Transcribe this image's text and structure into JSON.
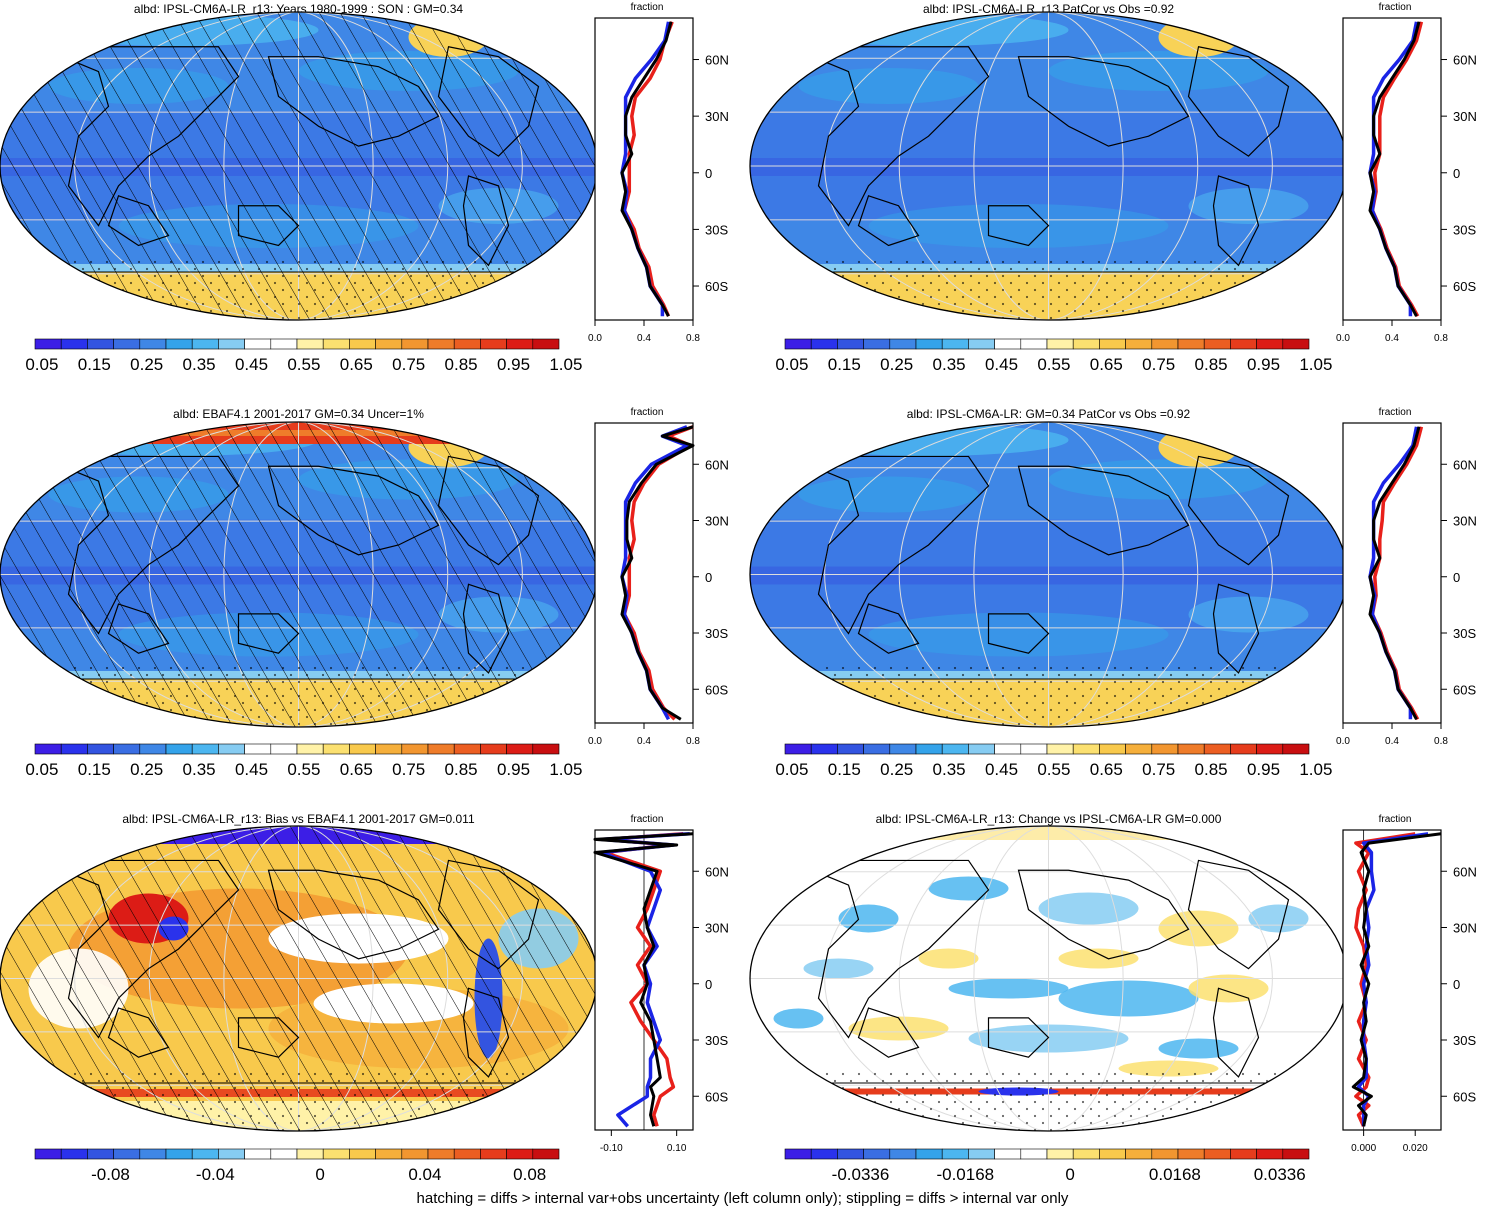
{
  "colors": {
    "seq": [
      "#3c1ee6",
      "#2a32ec",
      "#3354e0",
      "#3a6ee3",
      "#3f87e6",
      "#34a3ea",
      "#4cb6f0",
      "#86ccf2",
      "#ffffff",
      "#ffffff",
      "#fff2a8",
      "#fbe070",
      "#f8c94c",
      "#f5af3b",
      "#f29630",
      "#ef7c2a",
      "#ec5e22",
      "#e63c1c",
      "#dc1c16",
      "#c80e10"
    ],
    "div": [
      "#3c1ee6",
      "#2a32ec",
      "#3354e0",
      "#3a6ee3",
      "#3f87e6",
      "#34a3ea",
      "#4cb6f0",
      "#86ccf2",
      "#ffffff",
      "#ffffff",
      "#fff2a8",
      "#fbe070",
      "#f8c94c",
      "#f5af3b",
      "#f29630",
      "#ef7c2a",
      "#ec5e22",
      "#e63c1c",
      "#dc1c16",
      "#c80e10"
    ],
    "ocean": "#3f87e6",
    "ice": "#f8d257",
    "profile_red": "#e8201a",
    "profile_blue": "#1a24e6",
    "profile_black": "#000000"
  },
  "footer": "hatching = diffs > internal var+obs uncertainty (left column only); stippling = diffs > internal var only",
  "chart_data": [
    {
      "type": "map",
      "title": "albd: IPSL-CM6A-LR_r13: Years 1980-1999 : SON : GM=0.34",
      "pattern": "model",
      "hatching": true,
      "colorbar_ticks": [
        "0.05",
        "0.15",
        "0.25",
        "0.35",
        "0.45",
        "0.55",
        "0.65",
        "0.75",
        "0.85",
        "0.95",
        "1.05"
      ],
      "profile": {
        "title": "fraction",
        "xlim": [
          0.0,
          0.8
        ],
        "xticks": [
          "0.0",
          "0.4",
          "0.8"
        ],
        "lat_ticks": [
          "60N",
          "30N",
          "0",
          "30S",
          "60S"
        ],
        "lat": [
          80,
          70,
          60,
          50,
          40,
          30,
          20,
          10,
          0,
          -10,
          -20,
          -30,
          -40,
          -50,
          -60,
          -70,
          -76
        ],
        "series": [
          {
            "color": "black",
            "values": [
              0.62,
              0.58,
              0.5,
              0.4,
              0.3,
              0.25,
              0.25,
              0.3,
              0.22,
              0.25,
              0.22,
              0.3,
              0.35,
              0.42,
              0.45,
              0.55,
              0.6
            ]
          },
          {
            "color": "red",
            "values": [
              0.63,
              0.57,
              0.53,
              0.45,
              0.33,
              0.3,
              0.32,
              0.28,
              0.28,
              0.28,
              0.24,
              0.32,
              0.36,
              0.44,
              0.47,
              0.56,
              0.6
            ]
          },
          {
            "color": "blue",
            "values": [
              0.6,
              0.57,
              0.46,
              0.33,
              0.25,
              0.25,
              0.25,
              0.25,
              0.22,
              0.26,
              0.24,
              0.3,
              0.35,
              0.42,
              0.45,
              0.55,
              0.55
            ]
          }
        ]
      }
    },
    {
      "type": "map",
      "title": "albd: IPSL-CM6A-LR_r13 PatCor vs Obs =0.92",
      "pattern": "model",
      "hatching": false,
      "colorbar_ticks": [
        "0.05",
        "0.15",
        "0.25",
        "0.35",
        "0.45",
        "0.55",
        "0.65",
        "0.75",
        "0.85",
        "0.95",
        "1.05"
      ],
      "profile": {
        "title": "fraction",
        "xlim": [
          0.0,
          0.8
        ],
        "xticks": [
          "0.0",
          "0.4",
          "0.8"
        ],
        "lat_ticks": [
          "60N",
          "30N",
          "0",
          "30S",
          "60S"
        ],
        "lat": [
          80,
          70,
          60,
          50,
          40,
          30,
          20,
          10,
          0,
          -10,
          -20,
          -30,
          -40,
          -50,
          -60,
          -70,
          -76
        ],
        "series": [
          {
            "color": "black",
            "values": [
              0.62,
              0.58,
              0.5,
              0.4,
              0.3,
              0.25,
              0.25,
              0.3,
              0.22,
              0.25,
              0.22,
              0.3,
              0.35,
              0.42,
              0.45,
              0.55,
              0.6
            ]
          },
          {
            "color": "red",
            "values": [
              0.64,
              0.6,
              0.52,
              0.42,
              0.33,
              0.3,
              0.3,
              0.3,
              0.26,
              0.27,
              0.24,
              0.31,
              0.36,
              0.43,
              0.46,
              0.56,
              0.61
            ]
          },
          {
            "color": "blue",
            "values": [
              0.6,
              0.57,
              0.46,
              0.33,
              0.25,
              0.25,
              0.25,
              0.25,
              0.22,
              0.26,
              0.24,
              0.3,
              0.35,
              0.42,
              0.45,
              0.55,
              0.55
            ]
          }
        ]
      }
    },
    {
      "type": "map",
      "title": "albd: EBAF4.1 2001-2017 GM=0.34 Uncer=1%",
      "pattern": "obs",
      "hatching": true,
      "colorbar_ticks": [
        "0.05",
        "0.15",
        "0.25",
        "0.35",
        "0.45",
        "0.55",
        "0.65",
        "0.75",
        "0.85",
        "0.95",
        "1.05"
      ],
      "profile": {
        "title": "fraction",
        "xlim": [
          0.0,
          0.8
        ],
        "xticks": [
          "0.0",
          "0.4",
          "0.8"
        ],
        "lat_ticks": [
          "60N",
          "30N",
          "0",
          "30S",
          "60S"
        ],
        "lat": [
          80,
          75,
          70,
          60,
          50,
          40,
          30,
          20,
          10,
          0,
          -10,
          -20,
          -30,
          -40,
          -50,
          -60,
          -70,
          -76
        ],
        "series": [
          {
            "color": "black",
            "values": [
              0.8,
              0.55,
              0.8,
              0.5,
              0.38,
              0.28,
              0.26,
              0.26,
              0.3,
              0.22,
              0.25,
              0.22,
              0.3,
              0.35,
              0.42,
              0.45,
              0.55,
              0.7
            ]
          },
          {
            "color": "red",
            "values": [
              0.8,
              0.6,
              0.78,
              0.52,
              0.4,
              0.32,
              0.3,
              0.32,
              0.28,
              0.28,
              0.28,
              0.24,
              0.32,
              0.36,
              0.44,
              0.47,
              0.56,
              0.65
            ]
          },
          {
            "color": "blue",
            "values": [
              0.75,
              0.55,
              0.75,
              0.46,
              0.33,
              0.25,
              0.25,
              0.25,
              0.25,
              0.22,
              0.26,
              0.24,
              0.3,
              0.35,
              0.42,
              0.45,
              0.55,
              0.6
            ]
          }
        ]
      }
    },
    {
      "type": "map",
      "title": "albd: IPSL-CM6A-LR: GM=0.34 PatCor vs Obs =0.92",
      "pattern": "model",
      "hatching": false,
      "colorbar_ticks": [
        "0.05",
        "0.15",
        "0.25",
        "0.35",
        "0.45",
        "0.55",
        "0.65",
        "0.75",
        "0.85",
        "0.95",
        "1.05"
      ],
      "profile": {
        "title": "fraction",
        "xlim": [
          0.0,
          0.8
        ],
        "xticks": [
          "0.0",
          "0.4",
          "0.8"
        ],
        "lat_ticks": [
          "60N",
          "30N",
          "0",
          "30S",
          "60S"
        ],
        "lat": [
          80,
          70,
          60,
          50,
          40,
          30,
          20,
          10,
          0,
          -10,
          -20,
          -30,
          -40,
          -50,
          -60,
          -70,
          -76
        ],
        "series": [
          {
            "color": "black",
            "values": [
              0.62,
              0.58,
              0.5,
              0.4,
              0.3,
              0.25,
              0.25,
              0.3,
              0.22,
              0.25,
              0.22,
              0.3,
              0.35,
              0.42,
              0.45,
              0.55,
              0.6
            ]
          },
          {
            "color": "red",
            "values": [
              0.64,
              0.6,
              0.52,
              0.42,
              0.33,
              0.32,
              0.3,
              0.3,
              0.26,
              0.27,
              0.24,
              0.31,
              0.36,
              0.43,
              0.46,
              0.56,
              0.61
            ]
          },
          {
            "color": "blue",
            "values": [
              0.6,
              0.57,
              0.46,
              0.33,
              0.25,
              0.25,
              0.25,
              0.25,
              0.22,
              0.26,
              0.24,
              0.3,
              0.35,
              0.42,
              0.45,
              0.55,
              0.55
            ]
          }
        ]
      }
    },
    {
      "type": "map",
      "title": "albd: IPSL-CM6A-LR_r13: Bias vs EBAF4.1 2001-2017  GM=0.011",
      "pattern": "bias",
      "hatching": true,
      "colorbar_ticks": [
        "-0.08",
        "-0.04",
        "0",
        "0.04",
        "0.08"
      ],
      "profile": {
        "title": "fraction",
        "xlim": [
          -0.15,
          0.15
        ],
        "xticks": [
          "-0.10",
          "0.10"
        ],
        "lat_ticks": [
          "60N",
          "30N",
          "0",
          "30S",
          "60S"
        ],
        "lat": [
          80,
          77,
          74,
          70,
          60,
          50,
          40,
          30,
          20,
          10,
          0,
          -10,
          -20,
          -30,
          -40,
          -50,
          -55,
          -60,
          -70,
          -76
        ],
        "series": [
          {
            "color": "black",
            "values": [
              0.15,
              -0.15,
              0.1,
              -0.15,
              0.04,
              0.02,
              0.0,
              0.01,
              0.03,
              0.0,
              0.01,
              -0.01,
              0.02,
              0.03,
              0.04,
              0.05,
              0.02,
              0.03,
              0.02,
              0.03
            ]
          },
          {
            "color": "red",
            "values": [
              0.12,
              -0.12,
              0.08,
              -0.12,
              0.05,
              0.03,
              0.01,
              -0.02,
              0.02,
              -0.02,
              0.01,
              -0.04,
              -0.01,
              0.03,
              0.07,
              0.08,
              0.09,
              0.05,
              0.03,
              0.04
            ]
          },
          {
            "color": "blue",
            "values": [
              0.14,
              -0.13,
              0.09,
              -0.13,
              0.02,
              0.05,
              0.03,
              0.01,
              0.04,
              0.0,
              0.02,
              0.01,
              0.03,
              0.05,
              0.02,
              0.02,
              0.01,
              0.01,
              -0.08,
              -0.05
            ]
          }
        ]
      }
    },
    {
      "type": "map",
      "title": "albd: IPSL-CM6A-LR_r13: Change vs IPSL-CM6A-LR GM=0.000",
      "pattern": "change",
      "hatching": false,
      "colorbar_ticks": [
        "-0.0336",
        "-0.0168",
        "0",
        "0.0168",
        "0.0336"
      ],
      "profile": {
        "title": "fraction",
        "xlim": [
          -0.008,
          0.03
        ],
        "xticks": [
          "0.000",
          "0.020"
        ],
        "lat_ticks": [
          "60N",
          "30N",
          "0",
          "30S",
          "60S"
        ],
        "lat": [
          80,
          75,
          70,
          60,
          50,
          40,
          30,
          20,
          10,
          0,
          -10,
          -20,
          -30,
          -40,
          -50,
          -55,
          -60,
          -65,
          -70,
          -76
        ],
        "series": [
          {
            "color": "black",
            "values": [
              0.03,
              0.002,
              -0.001,
              0.002,
              0.0,
              0.001,
              0.0,
              0.002,
              -0.001,
              0.002,
              0.0,
              0.001,
              -0.001,
              0.001,
              0.0,
              -0.004,
              0.003,
              -0.002,
              0.001,
              0.0
            ]
          },
          {
            "color": "red",
            "values": [
              0.02,
              -0.003,
              0.002,
              -0.002,
              0.001,
              -0.002,
              -0.003,
              0.0,
              0.001,
              -0.001,
              0.001,
              -0.002,
              0.001,
              -0.002,
              0.002,
              0.001,
              -0.003,
              0.002,
              -0.002,
              0.0
            ]
          },
          {
            "color": "blue",
            "values": [
              0.025,
              0.0,
              0.003,
              0.003,
              0.004,
              0.001,
              0.002,
              0.001,
              0.002,
              0.0,
              0.001,
              0.0,
              0.0,
              0.001,
              0.001,
              -0.002,
              0.002,
              0.0,
              0.0,
              0.0
            ]
          }
        ]
      }
    }
  ]
}
